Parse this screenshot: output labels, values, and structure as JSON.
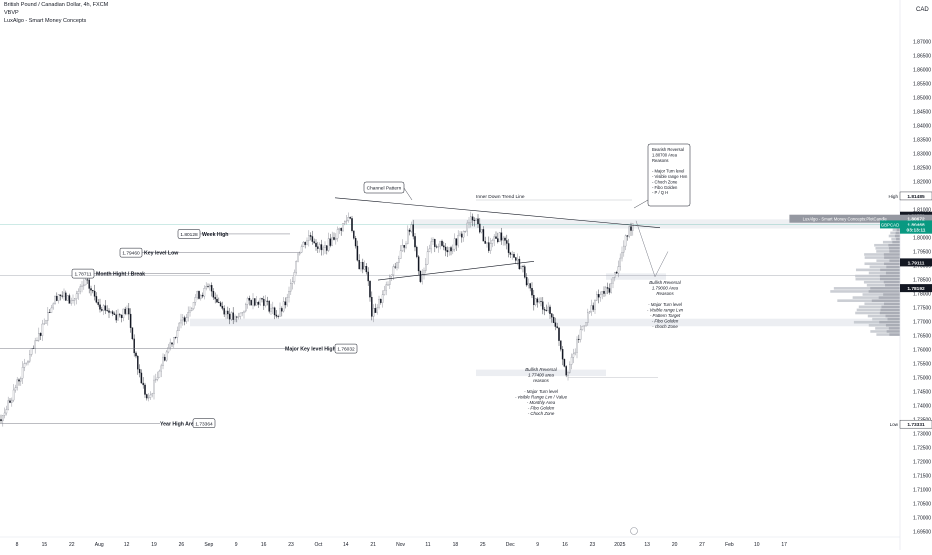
{
  "header": {
    "symbol": "British Pound / Canadian Dollar, 4h, FXCM",
    "ohlc_label": "VBVP",
    "indicator": "LuxAlgo - Smart Money Concepts"
  },
  "axis": {
    "currency": "CAD",
    "price_ticks": [
      "1.88000",
      "1.87000",
      "1.86500",
      "1.86000",
      "1.85500",
      "1.85000",
      "1.84500",
      "1.84000",
      "1.83500",
      "1.83000",
      "1.82500",
      "1.82000",
      "1.81500",
      "1.81000",
      "1.80500",
      "1.80000",
      "1.79500",
      "1.79000",
      "1.78500",
      "1.78000",
      "1.77500",
      "1.77000",
      "1.76500",
      "1.76000",
      "1.75500",
      "1.75000",
      "1.74500",
      "1.74000",
      "1.73500",
      "1.73000",
      "1.72500",
      "1.72000",
      "1.71500",
      "1.71000",
      "1.70500",
      "1.70000",
      "1.69500"
    ],
    "price_tick_values": [
      1.88,
      1.87,
      1.865,
      1.86,
      1.855,
      1.85,
      1.845,
      1.84,
      1.835,
      1.83,
      1.825,
      1.82,
      1.815,
      1.81,
      1.805,
      1.8,
      1.795,
      1.79,
      1.785,
      1.78,
      1.775,
      1.77,
      1.765,
      1.76,
      1.755,
      1.75,
      1.745,
      1.74,
      1.735,
      1.73,
      1.725,
      1.72,
      1.715,
      1.71,
      1.705,
      1.7,
      1.695
    ],
    "time_ticks": [
      "8",
      "15",
      "22",
      "Aug",
      "12",
      "19",
      "26",
      "Sep",
      "9",
      "16",
      "23",
      "Oct",
      "14",
      "21",
      "Nov",
      "11",
      "18",
      "25",
      "Dec",
      "9",
      "16",
      "23",
      "2025",
      "13",
      "20",
      "27",
      "Feb",
      "10",
      "17"
    ]
  },
  "chart_data": {
    "type": "candlestick",
    "symbol": "GBPCAD",
    "timeframe": "4h",
    "ylim": [
      1.693,
      1.882
    ],
    "price_path": [
      [
        0,
        1.735
      ],
      [
        10,
        1.742
      ],
      [
        22,
        1.752
      ],
      [
        36,
        1.762
      ],
      [
        46,
        1.772
      ],
      [
        58,
        1.78
      ],
      [
        72,
        1.777
      ],
      [
        86,
        1.784
      ],
      [
        100,
        1.776
      ],
      [
        116,
        1.772
      ],
      [
        128,
        1.774
      ],
      [
        136,
        1.756
      ],
      [
        142,
        1.748
      ],
      [
        148,
        1.741
      ],
      [
        158,
        1.752
      ],
      [
        170,
        1.762
      ],
      [
        182,
        1.77
      ],
      [
        196,
        1.779
      ],
      [
        210,
        1.782
      ],
      [
        222,
        1.775
      ],
      [
        236,
        1.77
      ],
      [
        248,
        1.777
      ],
      [
        262,
        1.778
      ],
      [
        278,
        1.772
      ],
      [
        288,
        1.778
      ],
      [
        298,
        1.795
      ],
      [
        310,
        1.801
      ],
      [
        322,
        1.795
      ],
      [
        338,
        1.802
      ],
      [
        350,
        1.808
      ],
      [
        358,
        1.79
      ],
      [
        366,
        1.79
      ],
      [
        372,
        1.772
      ],
      [
        384,
        1.78
      ],
      [
        398,
        1.792
      ],
      [
        412,
        1.805
      ],
      [
        420,
        1.785
      ],
      [
        432,
        1.798
      ],
      [
        450,
        1.796
      ],
      [
        464,
        1.802
      ],
      [
        474,
        1.808
      ],
      [
        488,
        1.796
      ],
      [
        500,
        1.801
      ],
      [
        512,
        1.794
      ],
      [
        524,
        1.788
      ],
      [
        532,
        1.778
      ],
      [
        546,
        1.775
      ],
      [
        556,
        1.769
      ],
      [
        566,
        1.752
      ],
      [
        572,
        1.756
      ],
      [
        582,
        1.768
      ],
      [
        596,
        1.778
      ],
      [
        610,
        1.782
      ],
      [
        620,
        1.792
      ],
      [
        628,
        1.802
      ],
      [
        634,
        1.806
      ]
    ],
    "levels": [
      {
        "label": "1.80128",
        "text": "Week High",
        "price": 1.80128
      },
      {
        "label": "1.79460",
        "text": "Key level Low",
        "price": 1.7946
      },
      {
        "label": "1.78711",
        "text": "Month Hight / Break",
        "price": 1.78711
      },
      {
        "label": "1.76032",
        "text": "Major Key level High",
        "price": 1.76032
      },
      {
        "label": "1.73364",
        "text": "Year High Area",
        "price": 1.73364
      }
    ],
    "annotations": {
      "channel": "Channel Pattern",
      "trend": "Inner Down Trend Line",
      "bearish": [
        "Bearish Reversal",
        "1.80700 Area",
        "Reasons",
        "",
        "- Major Turn level",
        "- Visible range Hvn",
        "- Choch Zone",
        "- Fibo Golden",
        "- P / Q H"
      ],
      "bullish_top": [
        "Bullish Reversal",
        "1.79000 Area",
        "Reasons",
        "",
        "- Major Turn level",
        "- Visible range Lvn",
        "- Pattern Target",
        "- Fibo Golden",
        "- choch Zone"
      ],
      "bullish_bottom": [
        "Bullish Reversal",
        "1.77400 area",
        "reasons",
        "",
        "- Major Turn level",
        "- visible Range Lvn / Value",
        "- Monthly Area",
        "- Fibo Golden",
        "- Choch Zone"
      ]
    },
    "price_labels": [
      {
        "text": "1.81485",
        "price": 1.81485,
        "bg": "#ffffff",
        "fg": "#131722",
        "tag": "High"
      },
      {
        "text": "1.80779",
        "price": 1.80779,
        "bg": "#131722",
        "fg": "#ffffff",
        "tag": ""
      },
      {
        "text": "1.80672",
        "price": 1.80672,
        "bg": "#9598a1",
        "fg": "#ffffff",
        "tag": "LuxAlgo - Smart Money Concepts:PlotCandle"
      },
      {
        "text": "1.80468",
        "price": 1.80468,
        "bg": "#089981",
        "fg": "#ffffff",
        "tag": "GBPCAD"
      },
      {
        "text": "03:13:11",
        "price": 1.8028,
        "bg": "#089981",
        "fg": "#ffffff",
        "tag": ""
      },
      {
        "text": "1.79111",
        "price": 1.79111,
        "bg": "#131722",
        "fg": "#ffffff",
        "tag": ""
      },
      {
        "text": "1.78192",
        "price": 1.78192,
        "bg": "#131722",
        "fg": "#ffffff",
        "tag": ""
      },
      {
        "text": "1.73331",
        "price": 1.73331,
        "bg": "#ffffff",
        "fg": "#131722",
        "tag": "Low"
      }
    ]
  },
  "colors": {
    "up": "#787b86",
    "down": "#131722",
    "accent": "#089981",
    "volume_profile": "#b2b5be"
  }
}
